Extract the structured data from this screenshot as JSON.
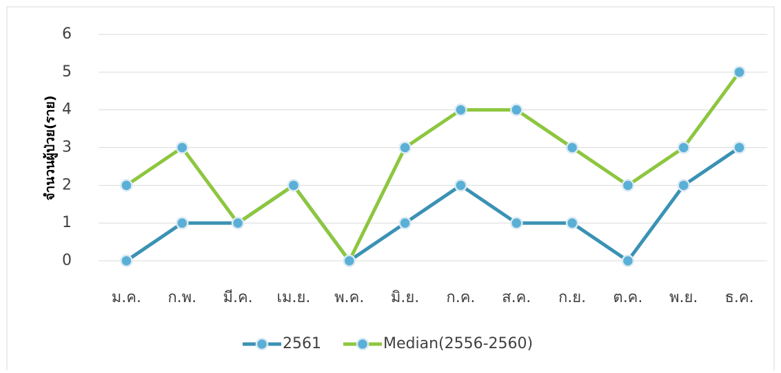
{
  "chart_data": {
    "type": "line",
    "y_label": "จำนวนผู้ป่วย(ราย)",
    "categories": [
      "ม.ค.",
      "ก.พ.",
      "มี.ค.",
      "เม.ย.",
      "พ.ค.",
      "มิ.ย.",
      "ก.ค.",
      "ส.ค.",
      "ก.ย.",
      "ต.ค.",
      "พ.ย.",
      "ธ.ค."
    ],
    "series": [
      {
        "name": "2561",
        "color": "#3a92b4",
        "values": [
          0,
          1,
          1,
          2,
          0,
          1,
          2,
          1,
          1,
          0,
          2,
          3
        ]
      },
      {
        "name": "Median(2556-2560)",
        "color": "#8dc63f",
        "values": [
          2,
          3,
          1,
          2,
          0,
          3,
          4,
          4,
          3,
          2,
          3,
          5
        ]
      }
    ],
    "marker_color": "#5aafd6",
    "ylim": [
      0,
      6
    ],
    "yticks": [
      0,
      1,
      2,
      3,
      4,
      5,
      6
    ],
    "grid": true,
    "legend": "bottom"
  }
}
